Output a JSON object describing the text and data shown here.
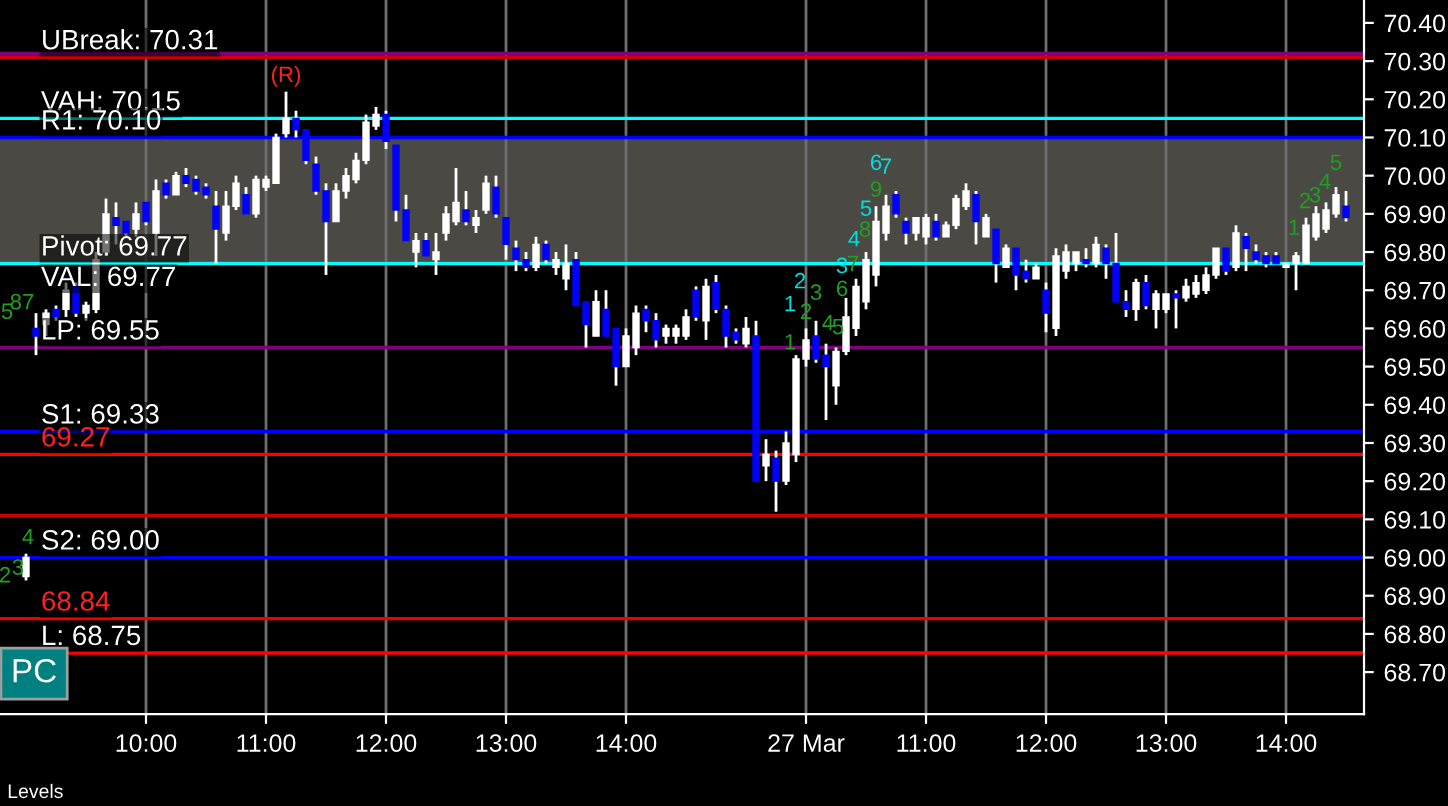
{
  "chart_data": {
    "type": "candlestick",
    "categories": [
      null,
      null,
      null,
      null,
      null,
      null,
      null,
      null,
      null,
      null,
      null,
      null,
      "10:00",
      null,
      null,
      null,
      null,
      null,
      null,
      null,
      null,
      null,
      null,
      null,
      "11:00",
      null,
      null,
      null,
      null,
      null,
      null,
      null,
      null,
      null,
      null,
      null,
      "12:00",
      null,
      null,
      null,
      null,
      null,
      null,
      null,
      null,
      null,
      null,
      null,
      "13:00",
      null,
      null,
      null,
      null,
      null,
      null,
      null,
      null,
      null,
      null,
      null,
      "14:00",
      null,
      null,
      null,
      null,
      null,
      null,
      null,
      null,
      null,
      null,
      null,
      null,
      null,
      null,
      null,
      null,
      null,
      "27 Mar",
      null,
      null,
      null,
      null,
      null,
      null,
      null,
      null,
      null,
      null,
      null,
      "11:00",
      null,
      null,
      null,
      null,
      null,
      null,
      null,
      null,
      null,
      null,
      null,
      "12:00",
      null,
      null,
      null,
      null,
      null,
      null,
      null,
      null,
      null,
      null,
      null,
      "13:00",
      null,
      null,
      null,
      null,
      null,
      null,
      null,
      null,
      null,
      null,
      null,
      "14:00",
      null,
      null,
      null,
      null,
      null,
      null
    ],
    "ohlc": [
      [
        68.95,
        69.01,
        68.94,
        69.0
      ],
      [
        69.6,
        69.64,
        69.53,
        69.58
      ],
      [
        69.61,
        69.65,
        69.58,
        69.64
      ],
      [
        69.65,
        69.66,
        69.62,
        69.63
      ],
      [
        69.65,
        69.72,
        69.63,
        69.7
      ],
      [
        69.71,
        69.72,
        69.63,
        69.64
      ],
      [
        69.64,
        69.67,
        69.62,
        69.66
      ],
      [
        69.65,
        69.8,
        69.64,
        69.78
      ],
      [
        69.8,
        69.94,
        69.79,
        69.9
      ],
      [
        69.89,
        69.93,
        69.82,
        69.87
      ],
      [
        69.88,
        69.88,
        69.84,
        69.85
      ],
      [
        69.86,
        69.93,
        69.84,
        69.9
      ],
      [
        69.93,
        69.93,
        69.87,
        69.88
      ],
      [
        69.85,
        69.99,
        69.79,
        69.96
      ],
      [
        69.98,
        69.99,
        69.94,
        69.95
      ],
      [
        69.95,
        70.01,
        69.95,
        70.0
      ],
      [
        70.0,
        70.02,
        69.97,
        69.98
      ],
      [
        69.99,
        70.0,
        69.95,
        69.96
      ],
      [
        69.97,
        69.98,
        69.94,
        69.95
      ],
      [
        69.92,
        69.96,
        69.77,
        69.86
      ],
      [
        69.85,
        69.96,
        69.83,
        69.92
      ],
      [
        69.92,
        70.0,
        69.91,
        69.98
      ],
      [
        69.95,
        69.97,
        69.9,
        69.9
      ],
      [
        69.9,
        70.0,
        69.89,
        69.99
      ],
      [
        69.97,
        70.0,
        69.96,
        69.99
      ],
      [
        69.98,
        70.11,
        69.98,
        70.1
      ],
      [
        70.11,
        70.22,
        70.1,
        70.15
      ],
      [
        70.15,
        70.17,
        70.1,
        70.12
      ],
      [
        70.12,
        70.12,
        70.03,
        70.04
      ],
      [
        70.03,
        70.05,
        69.95,
        69.96
      ],
      [
        69.96,
        69.98,
        69.74,
        69.88
      ],
      [
        69.88,
        69.98,
        69.88,
        69.96
      ],
      [
        69.96,
        70.02,
        69.94,
        70.0
      ],
      [
        69.99,
        70.06,
        69.98,
        70.04
      ],
      [
        70.04,
        70.16,
        70.03,
        70.14
      ],
      [
        70.13,
        70.18,
        70.12,
        70.16
      ],
      [
        70.16,
        70.17,
        70.07,
        70.09
      ],
      [
        70.08,
        70.08,
        69.88,
        69.91
      ],
      [
        69.91,
        69.95,
        69.83,
        69.83
      ],
      [
        69.8,
        69.85,
        69.76,
        69.83
      ],
      [
        69.83,
        69.85,
        69.79,
        69.79
      ],
      [
        69.78,
        69.85,
        69.74,
        69.8
      ],
      [
        69.85,
        69.92,
        69.83,
        69.9
      ],
      [
        69.88,
        70.02,
        69.87,
        69.93
      ],
      [
        69.91,
        69.96,
        69.87,
        69.88
      ],
      [
        69.87,
        69.91,
        69.85,
        69.89
      ],
      [
        69.91,
        70.0,
        69.9,
        69.98
      ],
      [
        69.97,
        70.0,
        69.89,
        69.9
      ],
      [
        69.89,
        69.89,
        69.78,
        69.82
      ],
      [
        69.81,
        69.83,
        69.75,
        69.78
      ],
      [
        69.78,
        69.8,
        69.75,
        69.76
      ],
      [
        69.76,
        69.84,
        69.75,
        69.82
      ],
      [
        69.82,
        69.83,
        69.77,
        69.78
      ],
      [
        69.76,
        69.8,
        69.74,
        69.78
      ],
      [
        69.73,
        69.82,
        69.7,
        69.77
      ],
      [
        69.78,
        69.8,
        69.66,
        69.66
      ],
      [
        69.67,
        69.67,
        69.55,
        69.61
      ],
      [
        69.58,
        69.7,
        69.58,
        69.67
      ],
      [
        69.65,
        69.7,
        69.58,
        69.58
      ],
      [
        69.6,
        69.6,
        69.45,
        69.5
      ],
      [
        69.5,
        69.6,
        69.5,
        69.58
      ],
      [
        69.55,
        69.66,
        69.53,
        69.64
      ],
      [
        69.65,
        69.66,
        69.59,
        69.62
      ],
      [
        69.62,
        69.64,
        69.55,
        69.57
      ],
      [
        69.58,
        69.61,
        69.56,
        69.6
      ],
      [
        69.58,
        69.61,
        69.56,
        69.6
      ],
      [
        69.58,
        69.65,
        69.57,
        69.63
      ],
      [
        69.7,
        69.71,
        69.62,
        69.63
      ],
      [
        69.62,
        69.73,
        69.57,
        69.71
      ],
      [
        69.72,
        69.74,
        69.64,
        69.65
      ],
      [
        69.65,
        69.66,
        69.55,
        69.58
      ],
      [
        69.59,
        69.6,
        69.56,
        69.57
      ],
      [
        69.56,
        69.63,
        69.55,
        69.6
      ],
      [
        69.58,
        69.62,
        69.2,
        69.2
      ],
      [
        69.24,
        69.31,
        69.2,
        69.27
      ],
      [
        69.26,
        69.28,
        69.12,
        69.2
      ],
      [
        69.2,
        69.33,
        69.19,
        69.3
      ],
      [
        69.27,
        69.53,
        69.25,
        69.52
      ],
      [
        69.52,
        69.6,
        69.5,
        69.57
      ],
      [
        69.58,
        69.62,
        69.51,
        69.52
      ],
      [
        69.53,
        69.56,
        69.36,
        69.5
      ],
      [
        69.45,
        69.55,
        69.4,
        69.54
      ],
      [
        69.54,
        69.68,
        69.53,
        69.63
      ],
      [
        69.6,
        69.73,
        69.58,
        69.71
      ],
      [
        69.67,
        69.8,
        69.65,
        69.78
      ],
      [
        69.74,
        69.92,
        69.71,
        69.88
      ],
      [
        69.85,
        69.95,
        69.83,
        69.92
      ],
      [
        69.95,
        69.96,
        69.89,
        69.9
      ],
      [
        69.88,
        69.89,
        69.82,
        69.85
      ],
      [
        69.85,
        69.89,
        69.83,
        69.89
      ],
      [
        69.84,
        69.9,
        69.82,
        69.89
      ],
      [
        69.88,
        69.9,
        69.83,
        69.84
      ],
      [
        69.84,
        69.88,
        69.84,
        69.87
      ],
      [
        69.87,
        69.95,
        69.86,
        69.94
      ],
      [
        69.92,
        69.98,
        69.91,
        69.96
      ],
      [
        69.95,
        69.96,
        69.82,
        69.88
      ],
      [
        69.84,
        69.9,
        69.84,
        69.89
      ],
      [
        69.86,
        69.86,
        69.72,
        69.77
      ],
      [
        69.76,
        69.82,
        69.76,
        69.81
      ],
      [
        69.81,
        69.81,
        69.7,
        69.74
      ],
      [
        69.75,
        69.78,
        69.72,
        69.73
      ],
      [
        69.73,
        69.77,
        69.73,
        69.76
      ],
      [
        69.7,
        69.72,
        69.59,
        69.64
      ],
      [
        69.6,
        69.81,
        69.58,
        69.79
      ],
      [
        69.75,
        69.82,
        69.73,
        69.8
      ],
      [
        69.77,
        69.8,
        69.75,
        69.8
      ],
      [
        69.78,
        69.81,
        69.76,
        69.77
      ],
      [
        69.77,
        69.84,
        69.76,
        69.82
      ],
      [
        69.81,
        69.82,
        69.73,
        69.77
      ],
      [
        69.77,
        69.85,
        69.67,
        69.67
      ],
      [
        69.67,
        69.7,
        69.63,
        69.65
      ],
      [
        69.65,
        69.73,
        69.62,
        69.72
      ],
      [
        69.72,
        69.74,
        69.65,
        69.66
      ],
      [
        69.65,
        69.7,
        69.6,
        69.69
      ],
      [
        69.65,
        69.69,
        69.64,
        69.69
      ],
      [
        69.69,
        69.7,
        69.6,
        69.68
      ],
      [
        69.68,
        69.73,
        69.67,
        69.71
      ],
      [
        69.69,
        69.74,
        69.68,
        69.72
      ],
      [
        69.7,
        69.76,
        69.69,
        69.74
      ],
      [
        69.74,
        69.81,
        69.73,
        69.81
      ],
      [
        69.81,
        69.81,
        69.74,
        69.75
      ],
      [
        69.76,
        69.87,
        69.75,
        69.85
      ],
      [
        69.84,
        69.85,
        69.75,
        69.81
      ],
      [
        69.8,
        69.82,
        69.77,
        69.78
      ],
      [
        69.79,
        69.8,
        69.76,
        69.77
      ],
      [
        69.79,
        69.8,
        69.77,
        69.77
      ],
      [
        69.76,
        69.77,
        69.76,
        69.77
      ],
      [
        69.77,
        69.8,
        69.7,
        69.79
      ],
      [
        69.77,
        69.89,
        69.77,
        69.87
      ],
      [
        69.84,
        69.92,
        69.83,
        69.9
      ],
      [
        69.86,
        69.93,
        69.85,
        69.91
      ],
      [
        69.9,
        69.97,
        69.89,
        69.95
      ],
      [
        69.92,
        69.96,
        69.88,
        69.89
      ]
    ],
    "colors": [
      "#ffffff",
      "#0000ff",
      "#ffffff",
      "#0000ff",
      "#ffffff",
      "#0000ff",
      "#ffffff",
      "#ffffff",
      "#ffffff",
      "#0000ff",
      "#0000ff",
      "#ffffff",
      "#0000ff",
      "#ffffff",
      "#0000ff",
      "#ffffff",
      "#0000ff",
      "#0000ff",
      "#0000ff",
      "#0000ff",
      "#ffffff",
      "#ffffff",
      "#0000ff",
      "#ffffff",
      "#ffffff",
      "#ffffff",
      "#ffffff",
      "#0000ff",
      "#0000ff",
      "#0000ff",
      "#0000ff",
      "#ffffff",
      "#ffffff",
      "#ffffff",
      "#ffffff",
      "#ffffff",
      "#0000ff",
      "#0000ff",
      "#0000ff",
      "#ffffff",
      "#0000ff",
      "#ffffff",
      "#ffffff",
      "#ffffff",
      "#0000ff",
      "#ffffff",
      "#ffffff",
      "#0000ff",
      "#0000ff",
      "#0000ff",
      "#0000ff",
      "#ffffff",
      "#0000ff",
      "#ffffff",
      "#ffffff",
      "#0000ff",
      "#0000ff",
      "#ffffff",
      "#0000ff",
      "#0000ff",
      "#ffffff",
      "#ffffff",
      "#0000ff",
      "#0000ff",
      "#ffffff",
      "#ffffff",
      "#ffffff",
      "#0000ff",
      "#ffffff",
      "#0000ff",
      "#0000ff",
      "#0000ff",
      "#ffffff",
      "#0000ff",
      "#ffffff",
      "#0000ff",
      "#ffffff",
      "#ffffff",
      "#ffffff",
      "#0000ff",
      "#0000ff",
      "#ffffff",
      "#ffffff",
      "#ffffff",
      "#ffffff",
      "#ffffff",
      "#ffffff",
      "#0000ff",
      "#0000ff",
      "#ffffff",
      "#ffffff",
      "#0000ff",
      "#ffffff",
      "#ffffff",
      "#ffffff",
      "#0000ff",
      "#ffffff",
      "#0000ff",
      "#ffffff",
      "#0000ff",
      "#0000ff",
      "#ffffff",
      "#0000ff",
      "#ffffff",
      "#ffffff",
      "#ffffff",
      "#0000ff",
      "#ffffff",
      "#0000ff",
      "#0000ff",
      "#0000ff",
      "#ffffff",
      "#0000ff",
      "#ffffff",
      "#ffffff",
      "#0000ff",
      "#ffffff",
      "#ffffff",
      "#ffffff",
      "#ffffff",
      "#0000ff",
      "#ffffff",
      "#0000ff",
      "#0000ff",
      "#0000ff",
      "#0000ff",
      "#ffffff",
      "#ffffff",
      "#ffffff",
      "#ffffff",
      "#ffffff",
      "#ffffff",
      "#0000ff"
    ],
    "ylim": [
      68.59,
      70.46
    ],
    "yticks": [
      {
        "value": 68.7,
        "label": "68.70"
      },
      {
        "value": 68.8,
        "label": "68.80"
      },
      {
        "value": 68.9,
        "label": "68.90"
      },
      {
        "value": 69.0,
        "label": "69.00"
      },
      {
        "value": 69.1,
        "label": "69.10"
      },
      {
        "value": 69.2,
        "label": "69.20"
      },
      {
        "value": 69.3,
        "label": "69.30"
      },
      {
        "value": 69.4,
        "label": "69.40"
      },
      {
        "value": 69.5,
        "label": "69.50"
      },
      {
        "value": 69.6,
        "label": "69.60"
      },
      {
        "value": 69.7,
        "label": "69.70"
      },
      {
        "value": 69.8,
        "label": "69.80"
      },
      {
        "value": 69.9,
        "label": "69.90"
      },
      {
        "value": 70.0,
        "label": "70.00"
      },
      {
        "value": 70.1,
        "label": "70.10"
      },
      {
        "value": 70.2,
        "label": "70.20"
      },
      {
        "value": 70.3,
        "label": "70.30"
      },
      {
        "value": 70.4,
        "label": "70.40"
      }
    ],
    "grid": "x",
    "bands": [
      {
        "axis": "y",
        "from": 69.77,
        "to": 70.1,
        "color": "#4a4944"
      }
    ],
    "ref_lines": [
      {
        "axis": "y",
        "value": 70.32,
        "color": "#800080"
      },
      {
        "axis": "y",
        "value": 70.31,
        "label": "UBreak: 70.31",
        "color": "#cc0000"
      },
      {
        "axis": "y",
        "value": 70.15,
        "label": "VAH: 70.15",
        "color": "#00ffff"
      },
      {
        "axis": "y",
        "value": 70.1,
        "label": "R1: 70.10",
        "color": "#0000ff"
      },
      {
        "axis": "y",
        "value": 69.77,
        "label": "Pivot: 69.77",
        "color": "#0000ff"
      },
      {
        "axis": "y",
        "value": 69.77,
        "label": "VAL: 69.77",
        "color": "#00ffff"
      },
      {
        "axis": "y",
        "value": 69.55,
        "label": "LP: 69.55",
        "color": "#800080"
      },
      {
        "axis": "y",
        "value": 69.33,
        "label": "S1: 69.33",
        "color": "#0000ff"
      },
      {
        "axis": "y",
        "value": 69.27,
        "label": "69.27",
        "color": "#ff0000"
      },
      {
        "axis": "y",
        "value": 69.11,
        "color": "#cc0000"
      },
      {
        "axis": "y",
        "value": 69.0,
        "label": "S2: 69.00",
        "color": "#0000ff"
      },
      {
        "axis": "y",
        "value": 68.84,
        "label": "68.84",
        "color": "#ee0000"
      },
      {
        "axis": "y",
        "value": 68.75,
        "label": "L: 68.75",
        "color": "#ff0000"
      }
    ],
    "annotations": [
      "(R)",
      "5",
      "87",
      "4",
      "3",
      "2",
      "1",
      "1",
      "2",
      "2",
      "3",
      "4",
      "5",
      "6",
      "3",
      "7",
      "4",
      "8",
      "5",
      "9",
      "6",
      "7",
      "1",
      "2",
      "3",
      "4",
      "5",
      "PC",
      "Levels"
    ]
  }
}
